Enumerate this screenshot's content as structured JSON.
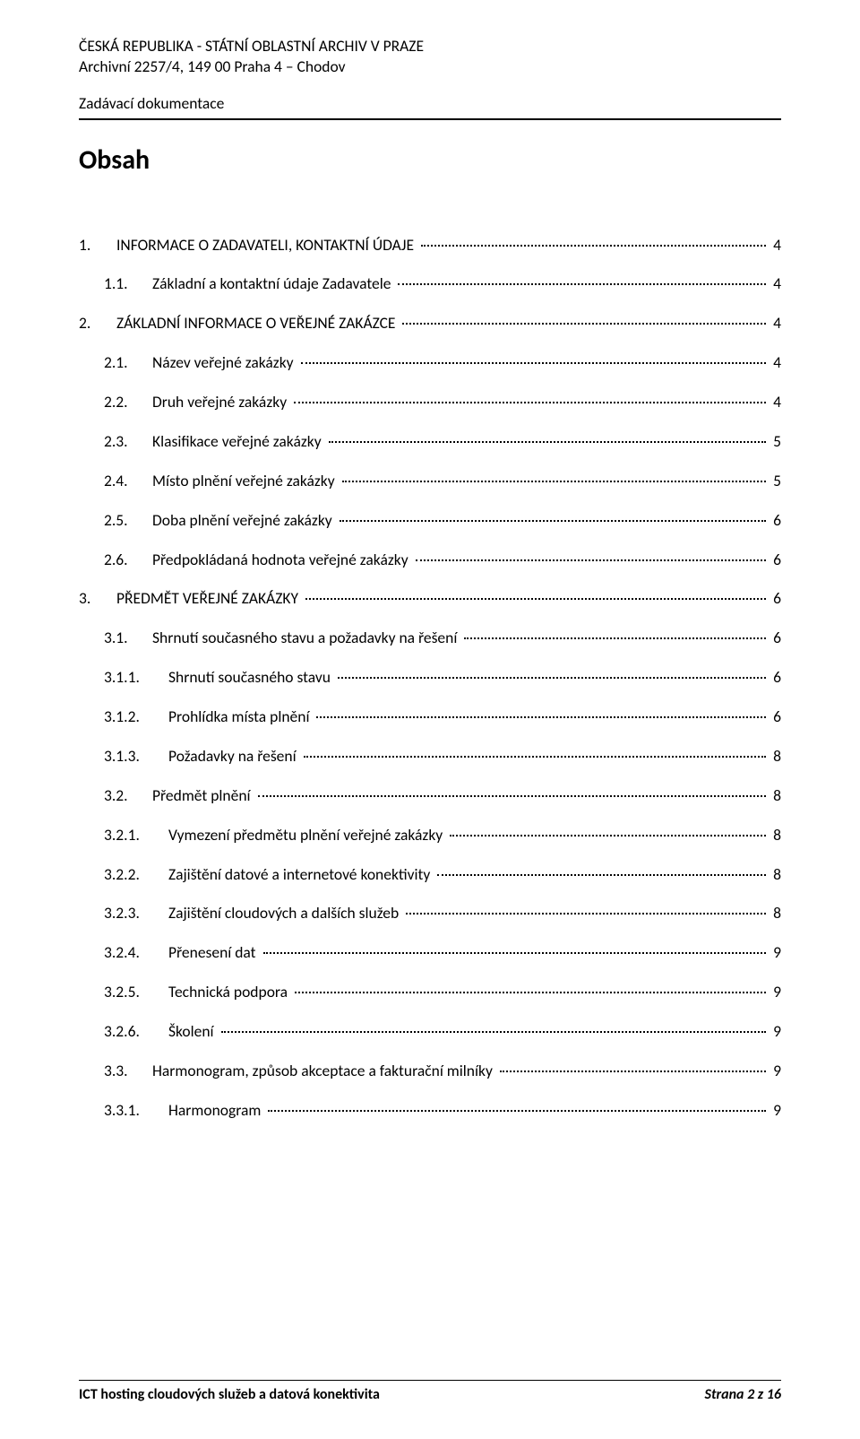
{
  "header": {
    "line1": "ČESKÁ REPUBLIKA - STÁTNÍ OBLASTNÍ ARCHIV V PRAZE",
    "line2": "Archivní 2257/4, 149 00 Praha 4 – Chodov",
    "subheading": "Zadávací dokumentace"
  },
  "title": "Obsah",
  "toc": [
    {
      "level": 1,
      "num": "1.",
      "label": "INFORMACE O ZADAVATELI, KONTAKTNÍ ÚDAJE",
      "page": "4"
    },
    {
      "level": 2,
      "num": "1.1.",
      "label": "Základní a kontaktní údaje Zadavatele",
      "page": "4"
    },
    {
      "level": 1,
      "num": "2.",
      "label": "ZÁKLADNÍ INFORMACE O VEŘEJNÉ ZAKÁZCE",
      "page": "4"
    },
    {
      "level": 2,
      "num": "2.1.",
      "label": "Název veřejné zakázky",
      "page": "4"
    },
    {
      "level": 2,
      "num": "2.2.",
      "label": "Druh veřejné zakázky",
      "page": "4"
    },
    {
      "level": 2,
      "num": "2.3.",
      "label": "Klasifikace veřejné zakázky",
      "page": "5"
    },
    {
      "level": 2,
      "num": "2.4.",
      "label": "Místo plnění veřejné zakázky",
      "page": "5"
    },
    {
      "level": 2,
      "num": "2.5.",
      "label": "Doba plnění veřejné zakázky",
      "page": "6"
    },
    {
      "level": 2,
      "num": "2.6.",
      "label": "Předpokládaná hodnota veřejné zakázky",
      "page": "6"
    },
    {
      "level": 1,
      "num": "3.",
      "label": "PŘEDMĚT VEŘEJNÉ ZAKÁZKY",
      "page": "6"
    },
    {
      "level": 2,
      "num": "3.1.",
      "label": "Shrnutí současného stavu a požadavky na řešení",
      "page": "6"
    },
    {
      "level": 3,
      "num": "3.1.1.",
      "label": "Shrnutí současného stavu",
      "page": "6"
    },
    {
      "level": 3,
      "num": "3.1.2.",
      "label": "Prohlídka místa plnění",
      "page": "6"
    },
    {
      "level": 3,
      "num": "3.1.3.",
      "label": "Požadavky na řešení",
      "page": "8"
    },
    {
      "level": 2,
      "num": "3.2.",
      "label": "Předmět plnění",
      "page": "8"
    },
    {
      "level": 3,
      "num": "3.2.1.",
      "label": "Vymezení předmětu plnění veřejné zakázky",
      "page": "8"
    },
    {
      "level": 3,
      "num": "3.2.2.",
      "label": "Zajištění datové a internetové konektivity",
      "page": "8"
    },
    {
      "level": 3,
      "num": "3.2.3.",
      "label": "Zajištění cloudových a dalších služeb",
      "page": "8"
    },
    {
      "level": 3,
      "num": "3.2.4.",
      "label": "Přenesení dat",
      "page": "9"
    },
    {
      "level": 3,
      "num": "3.2.5.",
      "label": "Technická podpora",
      "page": "9"
    },
    {
      "level": 3,
      "num": "3.2.6.",
      "label": "Školení",
      "page": "9"
    },
    {
      "level": 2,
      "num": "3.3.",
      "label": "Harmonogram, způsob akceptace a fakturační milníky",
      "page": "9"
    },
    {
      "level": 3,
      "num": "3.3.1.",
      "label": "Harmonogram",
      "page": "9"
    }
  ],
  "footer": {
    "left": "ICT hosting cloudových služeb a datová konektivita",
    "right_prefix": "Strana ",
    "page_current": "2",
    "page_sep": " z ",
    "page_total": "16"
  }
}
